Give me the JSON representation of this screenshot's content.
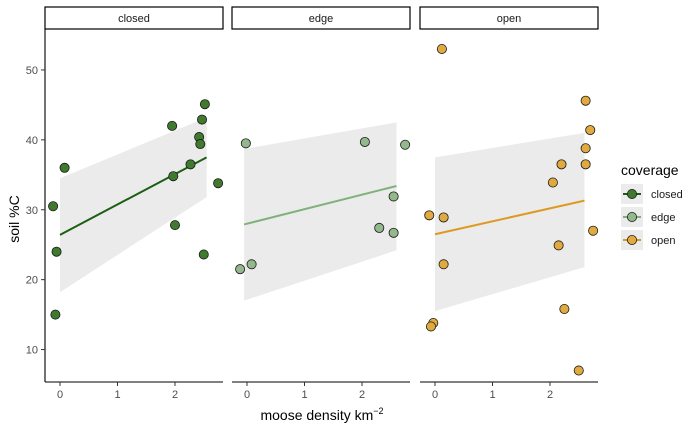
{
  "chart_data": {
    "type": "scatter",
    "facet_variable": "coverage",
    "facets": [
      "closed",
      "edge",
      "open"
    ],
    "xlabel": "moose density km",
    "xlabel_superscript": "−2",
    "ylabel": "soil %C",
    "xlim": [
      -0.25,
      2.75
    ],
    "ylim": [
      5,
      55
    ],
    "x_ticks": [
      "0",
      "1",
      "2"
    ],
    "y_ticks": [
      "10",
      "20",
      "30",
      "40",
      "50"
    ],
    "legend": {
      "title": "coverage",
      "placement": "right",
      "entries": [
        "closed",
        "edge",
        "open"
      ]
    },
    "colors": {
      "closed": "#3f7a2e",
      "edge": "#93b88c",
      "open": "#e0aa40",
      "closed_line": "#1b5e14",
      "edge_line": "#7fb27a",
      "open_line": "#dd9a23",
      "ribbon": "#ebebeb"
    },
    "series": [
      {
        "name": "closed",
        "points": [
          {
            "x": -0.12,
            "y": 30.5
          },
          {
            "x": 0.08,
            "y": 36.0
          },
          {
            "x": -0.06,
            "y": 24.0
          },
          {
            "x": -0.08,
            "y": 15.0
          },
          {
            "x": 1.95,
            "y": 42.0
          },
          {
            "x": 1.97,
            "y": 34.8
          },
          {
            "x": 2.0,
            "y": 27.8
          },
          {
            "x": 2.27,
            "y": 36.5
          },
          {
            "x": 2.42,
            "y": 40.4
          },
          {
            "x": 2.44,
            "y": 39.4
          },
          {
            "x": 2.47,
            "y": 42.9
          },
          {
            "x": 2.52,
            "y": 45.1
          },
          {
            "x": 2.5,
            "y": 23.6
          },
          {
            "x": 2.75,
            "y": 33.8
          }
        ],
        "fit": {
          "x": [
            0,
            2.55
          ],
          "y": [
            26.4,
            37.5
          ]
        },
        "ci": {
          "x": [
            0,
            2.55
          ],
          "lower": [
            18.2,
            31.8
          ],
          "upper": [
            34.5,
            43.2
          ]
        }
      },
      {
        "name": "edge",
        "points": [
          {
            "x": -0.12,
            "y": 21.5
          },
          {
            "x": 0.08,
            "y": 22.2
          },
          {
            "x": -0.02,
            "y": 39.5
          },
          {
            "x": 2.05,
            "y": 39.7
          },
          {
            "x": 2.3,
            "y": 27.4
          },
          {
            "x": 2.55,
            "y": 31.9
          },
          {
            "x": 2.55,
            "y": 26.7
          },
          {
            "x": 2.75,
            "y": 39.3
          }
        ],
        "fit": {
          "x": [
            -0.05,
            2.6
          ],
          "y": [
            27.9,
            33.4
          ]
        },
        "ci": {
          "x": [
            -0.05,
            2.6
          ],
          "lower": [
            17.0,
            24.2
          ],
          "upper": [
            38.7,
            42.5
          ]
        }
      },
      {
        "name": "open",
        "points": [
          {
            "x": 0.12,
            "y": 53.0
          },
          {
            "x": -0.1,
            "y": 29.2
          },
          {
            "x": 0.15,
            "y": 28.9
          },
          {
            "x": 0.15,
            "y": 22.2
          },
          {
            "x": -0.03,
            "y": 13.8
          },
          {
            "x": -0.07,
            "y": 13.3
          },
          {
            "x": 2.05,
            "y": 33.9
          },
          {
            "x": 2.2,
            "y": 36.5
          },
          {
            "x": 2.15,
            "y": 24.9
          },
          {
            "x": 2.25,
            "y": 15.8
          },
          {
            "x": 2.5,
            "y": 7.0
          },
          {
            "x": 2.62,
            "y": 45.6
          },
          {
            "x": 2.62,
            "y": 38.8
          },
          {
            "x": 2.62,
            "y": 36.5
          },
          {
            "x": 2.7,
            "y": 41.4
          },
          {
            "x": 2.75,
            "y": 27.0
          }
        ],
        "fit": {
          "x": [
            0,
            2.6
          ],
          "y": [
            26.5,
            31.3
          ]
        },
        "ci": {
          "x": [
            0,
            2.6
          ],
          "lower": [
            15.5,
            21.8
          ],
          "upper": [
            37.5,
            41.0
          ]
        }
      }
    ]
  }
}
